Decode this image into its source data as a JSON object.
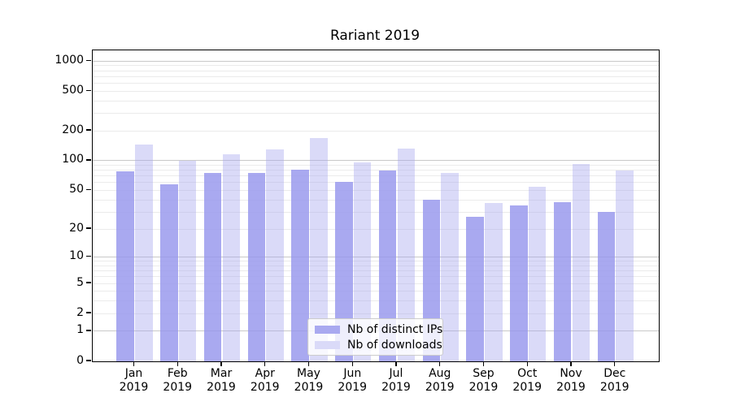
{
  "title": "Rariant 2019",
  "legend": {
    "items": [
      {
        "label": "Nb of distinct IPs",
        "color": "#a9a9f0"
      },
      {
        "label": "Nb of downloads",
        "color": "#dadaf8"
      }
    ]
  },
  "chart_data": {
    "type": "bar",
    "title": "Rariant 2019",
    "xlabel": "",
    "ylabel": "",
    "y_scale": "log1p (y position proportional to log10(1+value))",
    "y_axis_top_value": 1280,
    "y_ticks": [
      1000,
      500,
      200,
      100,
      50,
      20,
      10,
      5,
      2,
      1,
      0
    ],
    "grid": true,
    "grid_major_values": [
      1,
      10,
      100,
      1000
    ],
    "grid_minor_values": [
      2,
      3,
      4,
      5,
      6,
      7,
      8,
      9,
      20,
      30,
      40,
      50,
      60,
      70,
      80,
      90,
      200,
      300,
      400,
      500,
      600,
      700,
      800,
      900
    ],
    "categories": [
      "Jan",
      "Feb",
      "Mar",
      "Apr",
      "May",
      "Jun",
      "Jul",
      "Aug",
      "Sep",
      "Oct",
      "Nov",
      "Dec"
    ],
    "year": "2019",
    "series": [
      {
        "name": "Nb of distinct IPs",
        "color": "rgba(150,150,237,0.82)",
        "values": [
          78,
          58,
          76,
          75,
          82,
          61,
          79,
          40,
          27,
          35,
          38,
          30
        ]
      },
      {
        "name": "Nb of downloads",
        "color": "rgba(166,166,239,0.42)",
        "values": [
          146,
          100,
          116,
          131,
          170,
          96,
          132,
          76,
          37,
          55,
          93,
          80
        ]
      }
    ],
    "legend_position": "lower center"
  }
}
